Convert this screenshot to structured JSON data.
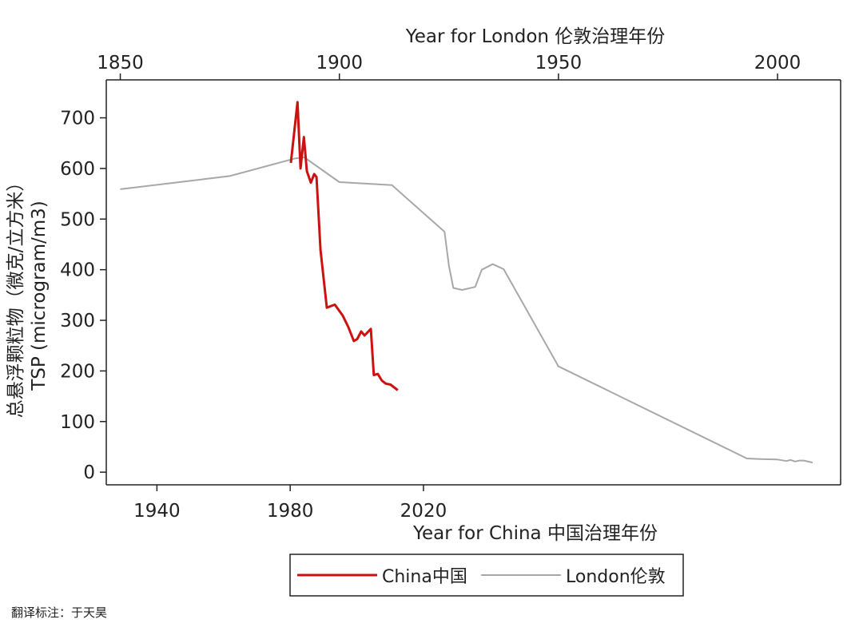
{
  "chart_data": {
    "type": "line",
    "title": "",
    "top_xlabel": "Year for London 伦敦治理年份",
    "bottom_xlabel": "Year for China 中国治理年份",
    "ylabel_en": "TSP (microgram/m3)",
    "ylabel_zh": "总悬浮颗粒物（微克/立方米）",
    "ylim": [
      -25,
      775
    ],
    "yticks": [
      0,
      100,
      200,
      300,
      400,
      500,
      600,
      700
    ],
    "top_xlim": [
      1846.8,
      2014.4
    ],
    "top_xticks": [
      1850,
      1900,
      1950,
      2000
    ],
    "bottom_xlim": [
      1924.8,
      2145.2
    ],
    "bottom_xticks": [
      1940,
      1980,
      2020
    ],
    "grid": false,
    "legend_position": "bottom",
    "series": [
      {
        "name": "China中国",
        "axis": "bottom",
        "color": "#cc1111",
        "x": [
          1980.2,
          1982.2,
          1983.1,
          1984.1,
          1985,
          1986.2,
          1987.2,
          1987.9,
          1989.1,
          1991,
          1993.4,
          1995.8,
          1997.5,
          1999.1,
          2000.1,
          2001.3,
          2002.3,
          2004.2,
          2005.1,
          2006.3,
          2007.5,
          2008.7,
          2010.1,
          2012.3
        ],
        "y": [
          611,
          731,
          600,
          662,
          595,
          572,
          589,
          583,
          439,
          325,
          331,
          309,
          286,
          259,
          263,
          278,
          270,
          283,
          192,
          194,
          181,
          175,
          173,
          162
        ]
      },
      {
        "name": "London伦敦",
        "axis": "top",
        "color": "#a8a8a8",
        "x": [
          1850,
          1875,
          1890,
          1892,
          1900,
          1912,
          1924,
          1925,
          1926,
          1928,
          1931,
          1932.5,
          1935,
          1937.5,
          1950,
          1993,
          1996,
          2000,
          2002,
          2003,
          2004,
          2005,
          2006,
          2008
        ],
        "y": [
          559,
          585,
          620,
          622,
          573,
          567,
          475,
          408,
          364,
          360,
          366,
          400,
          411,
          401,
          209,
          27,
          26,
          25,
          22,
          24,
          21,
          23,
          23,
          19
        ]
      }
    ]
  },
  "note": "翻译标注：于天昊"
}
